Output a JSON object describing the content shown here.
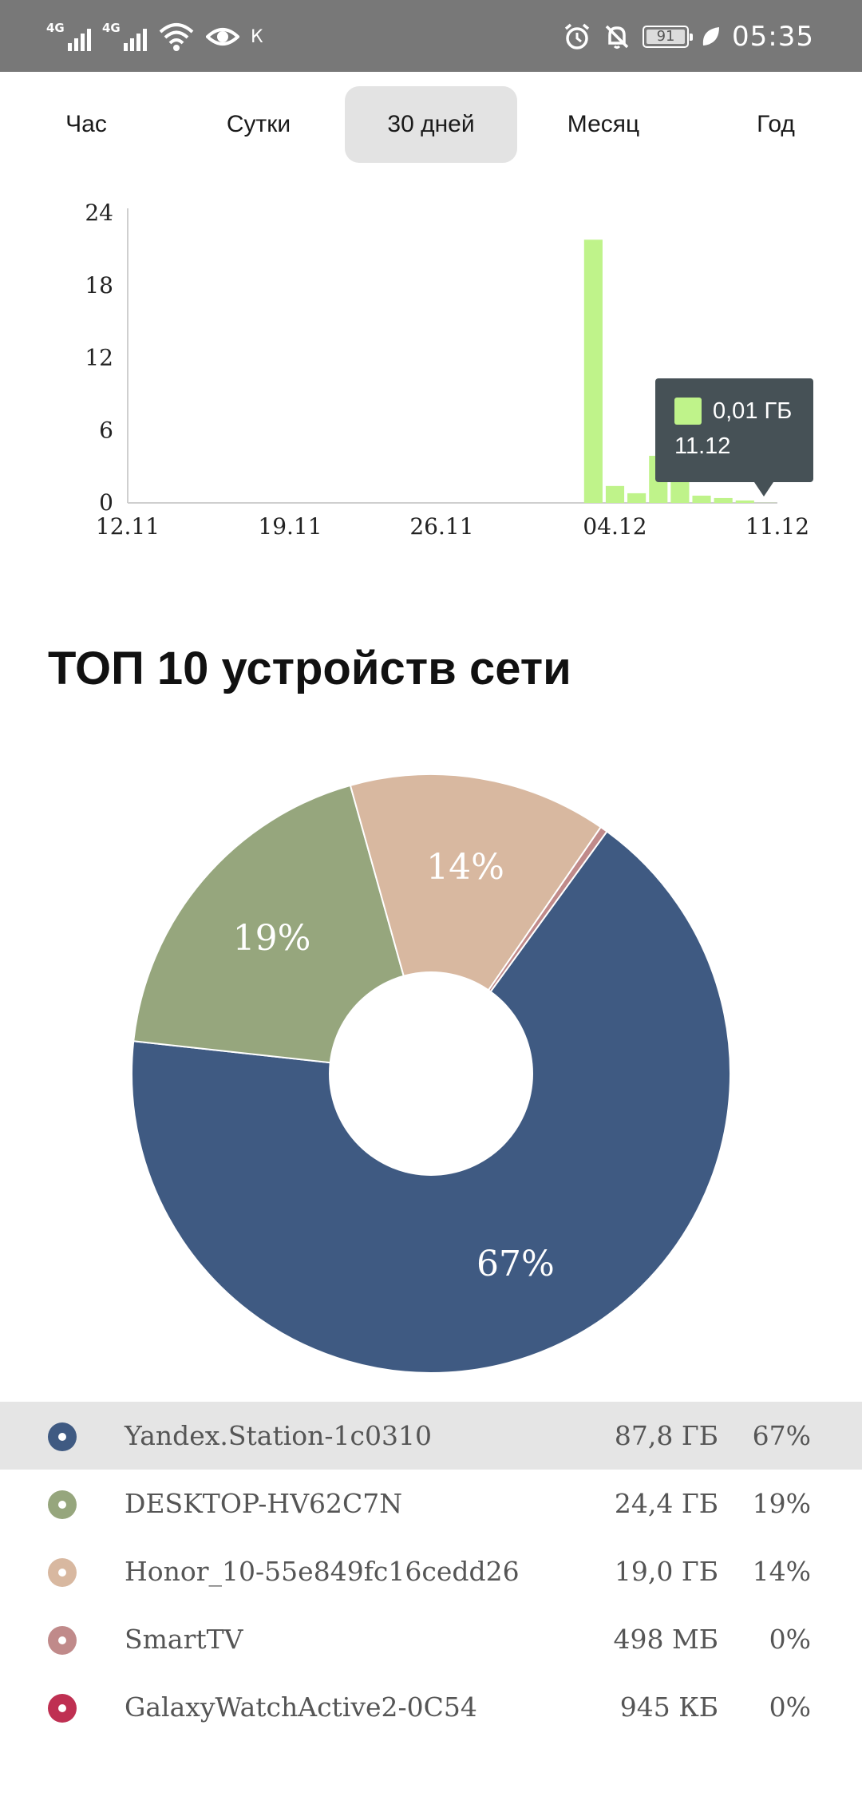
{
  "status_bar": {
    "network_1": "4G",
    "network_2": "4G",
    "carrier_icon": "К",
    "battery": "91",
    "time": "05:35"
  },
  "tabs": [
    {
      "label": "Час",
      "active": false
    },
    {
      "label": "Сутки",
      "active": false
    },
    {
      "label": "30 дней",
      "active": true
    },
    {
      "label": "Месяц",
      "active": false
    },
    {
      "label": "Год",
      "active": false
    }
  ],
  "chart_data": [
    {
      "type": "bar",
      "title": "",
      "xlabel": "",
      "ylabel": "",
      "ylim": [
        0,
        24
      ],
      "y_ticks": [
        "0",
        "6",
        "12",
        "18",
        "24"
      ],
      "x_tick_labels": [
        "12.11",
        "19.11",
        "26.11",
        "04.12",
        "11.12"
      ],
      "categories": [
        "12.11",
        "13.11",
        "14.11",
        "15.11",
        "16.11",
        "17.11",
        "18.11",
        "19.11",
        "20.11",
        "21.11",
        "22.11",
        "23.11",
        "24.11",
        "25.11",
        "26.11",
        "27.11",
        "28.11",
        "29.11",
        "30.11",
        "01.12",
        "02.12",
        "03.12",
        "04.12",
        "05.12",
        "06.12",
        "07.12",
        "08.12",
        "09.12",
        "10.12",
        "11.12"
      ],
      "values": [
        0,
        0,
        0,
        0,
        0,
        0,
        0,
        0,
        0,
        0,
        0,
        0,
        0,
        0,
        0,
        0,
        0,
        0,
        0,
        0,
        0,
        21.8,
        1.4,
        0.8,
        3.9,
        5.4,
        0.6,
        0.4,
        0.2,
        0.01
      ],
      "bar_color": "#bff38a",
      "grid": false,
      "tooltip": {
        "value": "0,01 ГБ",
        "date": "11.12"
      }
    },
    {
      "type": "pie",
      "donut": true,
      "labels": [
        "Yandex.Station-1c0310",
        "DESKTOP-HV62C7N",
        "Honor_10-55e849fc16cedd26",
        "SmartTV",
        "GalaxyWatchActive2-0C54"
      ],
      "values": [
        67,
        19,
        14,
        0.4,
        0.001
      ],
      "slice_labels": [
        "67%",
        "19%",
        "14%",
        "",
        ""
      ],
      "colors": [
        "#3f5a82",
        "#96a67d",
        "#d8b8a0",
        "#c08a8a",
        "#bf3052"
      ]
    }
  ],
  "section_title": "ТОП 10 устройств сети",
  "devices": [
    {
      "name": "Yandex.Station-1c0310",
      "size": "87,8 ГБ",
      "pct": "67%",
      "color": "#3f5a82"
    },
    {
      "name": "DESKTOP-HV62C7N",
      "size": "24,4 ГБ",
      "pct": "19%",
      "color": "#96a67d"
    },
    {
      "name": "Honor_10-55e849fc16cedd26",
      "size": "19,0 ГБ",
      "pct": "14%",
      "color": "#d8b8a0"
    },
    {
      "name": "SmartTV",
      "size": "498 МБ",
      "pct": "0%",
      "color": "#c08a8a"
    },
    {
      "name": "GalaxyWatchActive2-0C54",
      "size": "945 КБ",
      "pct": "0%",
      "color": "#bf3052"
    }
  ]
}
